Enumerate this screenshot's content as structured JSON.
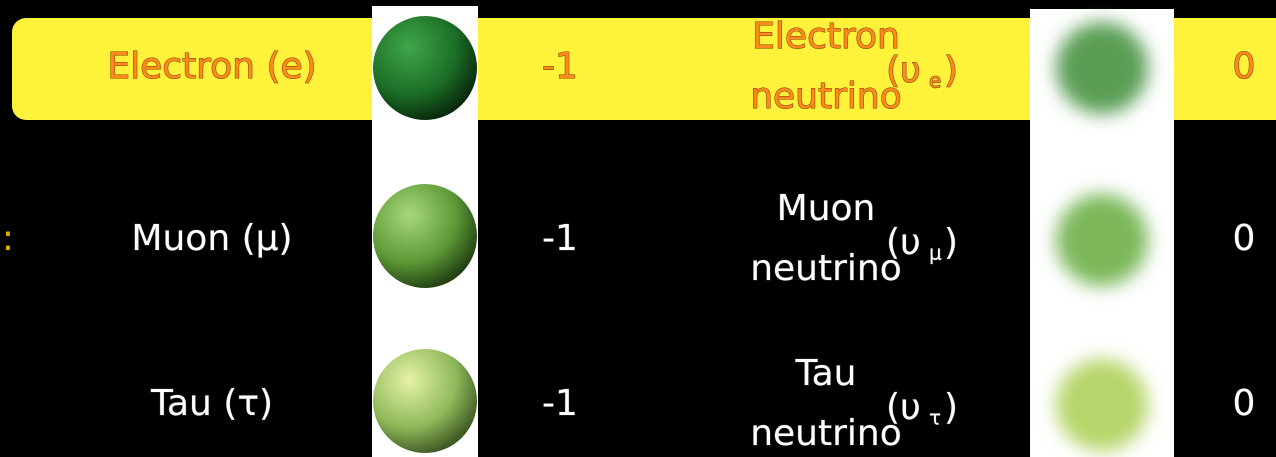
{
  "stray_mark": ":",
  "rows": [
    {
      "particle": "Electron (e)",
      "charge": -1,
      "neutrino": [
        "Electron",
        "neutrino"
      ],
      "symbol": {
        "open": "(υ",
        "sub": "e",
        "close": ")"
      },
      "neutrino_charge": 0
    },
    {
      "particle": "Muon (μ)",
      "charge": -1,
      "neutrino": [
        "Muon",
        "neutrino"
      ],
      "symbol": {
        "open": "(υ",
        "sub": "μ",
        "close": ")"
      },
      "neutrino_charge": 0
    },
    {
      "particle": "Tau (τ)",
      "charge": -1,
      "neutrino": [
        "Tau",
        "neutrino"
      ],
      "symbol": {
        "open": "(υ",
        "sub": "τ",
        "close": ")"
      },
      "neutrino_charge": 0
    }
  ]
}
